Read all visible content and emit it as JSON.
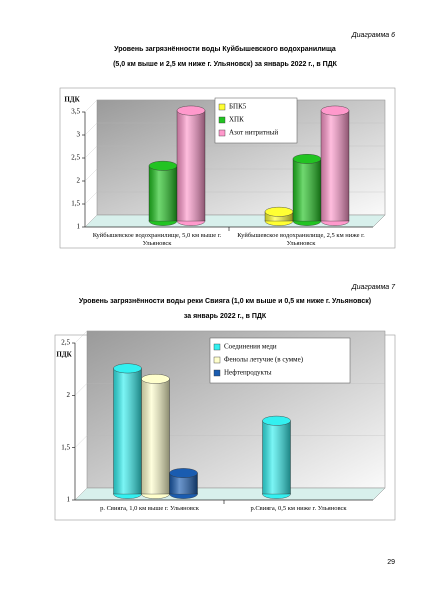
{
  "chart_data": [
    {
      "type": "bar",
      "caption": "Диаграмма 6",
      "title": [
        "Уровень загрязнённости воды Куйбышевского водохранилища",
        "(5,0 км выше и 2,5 км ниже г. Ульяновск) за январь 2022 г., в ПДК"
      ],
      "y_label": "ПДК",
      "categories": [
        "Куйбышевское водохранилище, 5,0 км выше г. Ульяновск",
        "Куйбышевское водохранилище, 2,5 км ниже г. Ульяновск"
      ],
      "series": [
        {
          "name": "БПК5",
          "color": "#ffff33",
          "values": [
            null,
            1.2
          ]
        },
        {
          "name": "ХПК",
          "color": "#22c322",
          "values": [
            2.2,
            2.35
          ]
        },
        {
          "name": "Азот нитритный",
          "color": "#ff99cc",
          "values": [
            3.4,
            3.4
          ]
        }
      ],
      "ylim": [
        1,
        3.5
      ],
      "yticks": [
        1,
        {
          "value": 1.5,
          "label": "1,5"
        },
        2,
        {
          "value": 2.5,
          "label": "2,5"
        },
        3,
        {
          "value": 3.5,
          "label": "3,5"
        }
      ]
    },
    {
      "type": "bar",
      "caption": "Диаграмма 7",
      "title": [
        "Уровень загрязнённости воды реки Свияга (1,0 км выше и 0,5 км ниже г. Ульяновск)",
        "за январь 2022 г., в ПДК"
      ],
      "y_label": "ПДК",
      "categories": [
        "р. Свияга, 1,0 км выше г. Ульяновск",
        "р.Свияга, 0,5 км ниже г. Ульяновск"
      ],
      "series": [
        {
          "name": "Соединения меди",
          "color": "#33f0f0",
          "values": [
            2.2,
            1.7
          ]
        },
        {
          "name": "Фенолы летучие (в сумме)",
          "color": "#ffffcc",
          "values": [
            2.1,
            null
          ]
        },
        {
          "name": "Нефтепродукты",
          "color": "#1a5cb0",
          "values": [
            1.2,
            null
          ]
        }
      ],
      "ylim": [
        1,
        2.5
      ],
      "yticks": [
        1,
        {
          "value": 1.5,
          "label": "1,5"
        },
        2,
        {
          "value": 2.5,
          "label": "2,5"
        }
      ]
    }
  ],
  "page_number": "29"
}
